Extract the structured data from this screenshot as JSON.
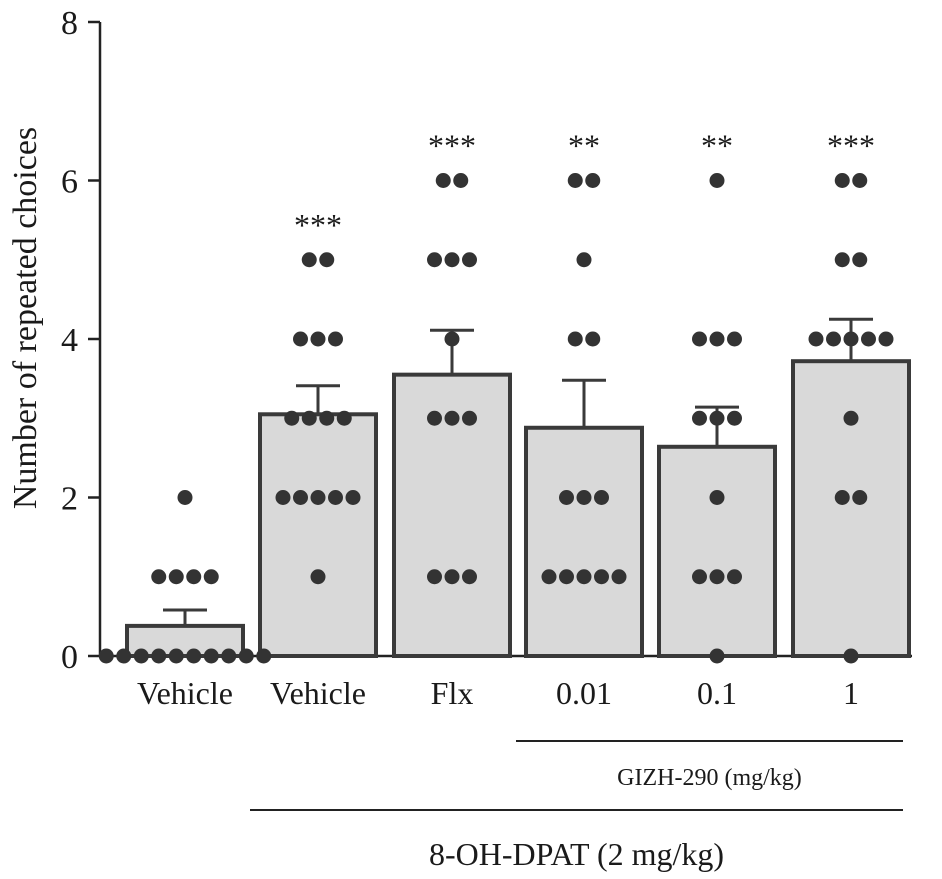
{
  "chart_data": {
    "type": "bar",
    "ylabel": "Number of repeated choices",
    "ylim": [
      0,
      8
    ],
    "yticks": [
      "0",
      "2",
      "4",
      "6",
      "8"
    ],
    "categories": [
      "Vehicle",
      "Vehicle",
      "Flx",
      "0.01",
      "0.1",
      "1"
    ],
    "values": [
      0.38,
      3.05,
      3.55,
      2.88,
      2.64,
      3.72
    ],
    "sem": [
      0.2,
      0.36,
      0.56,
      0.6,
      0.5,
      0.53
    ],
    "significance": [
      "",
      "***",
      "***",
      "**",
      "**",
      "***"
    ],
    "points": [
      [
        2,
        1,
        1,
        1,
        1,
        0,
        0,
        0,
        0,
        0,
        0,
        0,
        0,
        0,
        0
      ],
      [
        5,
        5,
        4,
        4,
        4,
        3,
        3,
        3,
        3,
        2,
        2,
        2,
        2,
        2,
        1
      ],
      [
        6,
        6,
        5,
        5,
        5,
        4,
        3,
        3,
        3,
        1,
        1,
        1
      ],
      [
        6,
        6,
        5,
        4,
        4,
        2,
        2,
        2,
        1,
        1,
        1,
        1,
        1
      ],
      [
        6,
        4,
        4,
        4,
        3,
        3,
        3,
        2,
        1,
        1,
        1,
        0
      ],
      [
        6,
        6,
        5,
        5,
        4,
        4,
        4,
        4,
        4,
        3,
        2,
        2,
        0
      ]
    ],
    "colors": {
      "bar_fill": "#d9d9d9",
      "bar_edge": "#3a3a3a",
      "dot": "#333333",
      "axis": "#222222"
    },
    "groups": [
      {
        "label": "GIZH-290 (mg/kg)",
        "from": 3,
        "to": 5
      },
      {
        "label": "8-OH-DPAT (2 mg/kg)",
        "from": 1,
        "to": 5
      }
    ],
    "grid": false,
    "legend": "none"
  }
}
